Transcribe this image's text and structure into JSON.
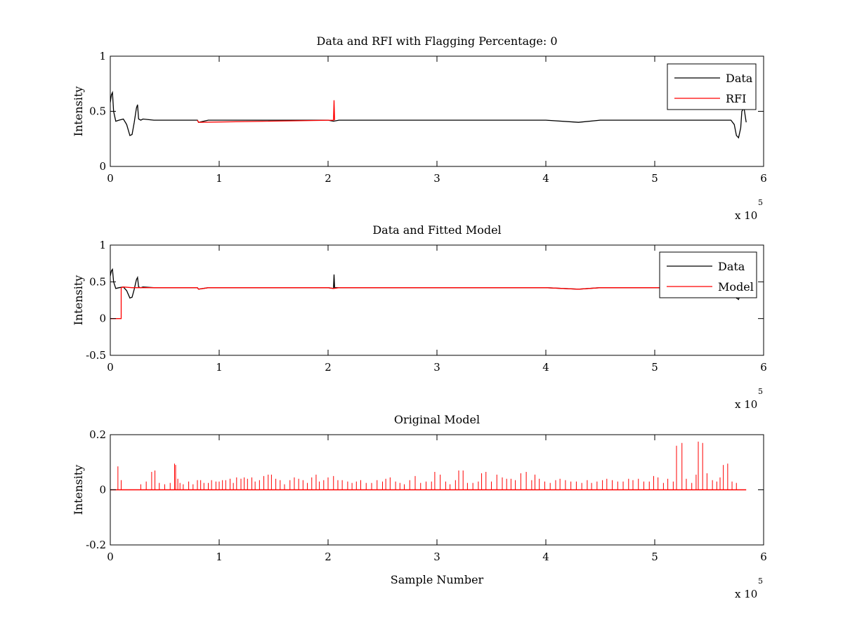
{
  "chart_data": [
    {
      "type": "line",
      "title": "Data and RFI with Flagging Percentage: 0",
      "xlabel": "",
      "ylabel": "Intensity",
      "xlim": [
        0,
        6
      ],
      "ylim": [
        0,
        1
      ],
      "xticks": [
        "0",
        "1",
        "2",
        "3",
        "4",
        "5",
        "6"
      ],
      "yticks": [
        "0",
        "0.5",
        "1"
      ],
      "x_multiplier": {
        "base": "x 10",
        "exponent": "5"
      },
      "legend": {
        "placement": "top-right",
        "entries": [
          "Data",
          "RFI"
        ]
      },
      "grid": false,
      "series": [
        {
          "name": "Data",
          "color": "#000000",
          "x": [
            0,
            0.01,
            0.02,
            0.03,
            0.05,
            0.08,
            0.12,
            0.15,
            0.18,
            0.2,
            0.22,
            0.24,
            0.25,
            0.26,
            0.28,
            0.3,
            0.4,
            0.6,
            0.8,
            0.81,
            0.9,
            0.95,
            1.2,
            1.6,
            2.0,
            2.05,
            2.1,
            2.5,
            3.0,
            3.5,
            4.0,
            4.3,
            4.5,
            5.0,
            5.5,
            5.7,
            5.73,
            5.75,
            5.77,
            5.79,
            5.8,
            5.82,
            5.84
          ],
          "y": [
            0.58,
            0.65,
            0.67,
            0.5,
            0.41,
            0.42,
            0.43,
            0.38,
            0.28,
            0.29,
            0.4,
            0.53,
            0.56,
            0.43,
            0.42,
            0.43,
            0.42,
            0.42,
            0.42,
            0.4,
            0.42,
            0.42,
            0.42,
            0.42,
            0.42,
            0.41,
            0.42,
            0.42,
            0.42,
            0.42,
            0.42,
            0.4,
            0.42,
            0.42,
            0.42,
            0.42,
            0.38,
            0.28,
            0.26,
            0.35,
            0.5,
            0.53,
            0.4
          ]
        },
        {
          "name": "RFI",
          "color": "#ff0000",
          "x": [
            0.8,
            0.81,
            2.05,
            2.055,
            2.06
          ],
          "y": [
            0.42,
            0.4,
            0.42,
            0.6,
            0.42
          ]
        }
      ]
    },
    {
      "type": "line",
      "title": "Data and Fitted Model",
      "xlabel": "",
      "ylabel": "Intensity",
      "xlim": [
        0,
        6
      ],
      "ylim": [
        -0.5,
        1
      ],
      "xticks": [
        "0",
        "1",
        "2",
        "3",
        "4",
        "5",
        "6"
      ],
      "yticks": [
        "-0.5",
        "0",
        "0.5",
        "1"
      ],
      "x_multiplier": {
        "base": "x 10",
        "exponent": "5"
      },
      "legend": {
        "placement": "top-right",
        "entries": [
          "Data",
          "Model"
        ]
      },
      "grid": false,
      "series": [
        {
          "name": "Data",
          "color": "#000000",
          "x": [
            0,
            0.01,
            0.02,
            0.03,
            0.05,
            0.08,
            0.12,
            0.15,
            0.18,
            0.2,
            0.22,
            0.24,
            0.25,
            0.26,
            0.28,
            0.3,
            0.4,
            0.6,
            0.8,
            0.81,
            0.9,
            0.95,
            1.2,
            1.6,
            2.0,
            2.05,
            2.055,
            2.06,
            2.1,
            2.5,
            3.0,
            3.5,
            4.0,
            4.3,
            4.5,
            5.0,
            5.5,
            5.7,
            5.73,
            5.75,
            5.77,
            5.79,
            5.8,
            5.82,
            5.84
          ],
          "y": [
            0.58,
            0.65,
            0.67,
            0.5,
            0.41,
            0.42,
            0.43,
            0.38,
            0.28,
            0.29,
            0.4,
            0.53,
            0.56,
            0.43,
            0.42,
            0.43,
            0.42,
            0.42,
            0.42,
            0.4,
            0.42,
            0.42,
            0.42,
            0.42,
            0.42,
            0.41,
            0.6,
            0.42,
            0.42,
            0.42,
            0.42,
            0.42,
            0.42,
            0.4,
            0.42,
            0.42,
            0.42,
            0.42,
            0.38,
            0.28,
            0.26,
            0.35,
            0.5,
            0.53,
            0.4
          ]
        },
        {
          "name": "Model",
          "color": "#ff0000",
          "x": [
            0,
            0.1,
            0.1,
            0.12,
            0.2,
            0.4,
            0.8,
            0.81,
            0.9,
            1.2,
            2.0,
            2.05,
            2.1,
            3.0,
            4.0,
            4.3,
            4.5,
            5.0,
            5.5,
            5.84
          ],
          "y": [
            0,
            0,
            0.42,
            0.43,
            0.42,
            0.42,
            0.42,
            0.4,
            0.42,
            0.42,
            0.42,
            0.41,
            0.42,
            0.42,
            0.42,
            0.4,
            0.42,
            0.42,
            0.42,
            0.42
          ]
        }
      ]
    },
    {
      "type": "line",
      "title": "Original Model",
      "xlabel": "Sample Number",
      "ylabel": "Intensity",
      "xlim": [
        0,
        6
      ],
      "ylim": [
        -0.2,
        0.2
      ],
      "xticks": [
        "0",
        "1",
        "2",
        "3",
        "4",
        "5",
        "6"
      ],
      "yticks": [
        "-0.2",
        "0",
        "0.2"
      ],
      "x_multiplier": {
        "base": "x 10",
        "exponent": "5"
      },
      "grid": false,
      "series": [
        {
          "color": "#ff0000",
          "baseline": 0,
          "x_end": 5.84,
          "spikes_x": [
            0.07,
            0.1,
            0.28,
            0.33,
            0.38,
            0.41,
            0.45,
            0.5,
            0.55,
            0.59,
            0.6,
            0.62,
            0.64,
            0.67,
            0.72,
            0.76,
            0.8,
            0.83,
            0.86,
            0.9,
            0.93,
            0.97,
            1.0,
            1.03,
            1.06,
            1.1,
            1.13,
            1.16,
            1.2,
            1.23,
            1.26,
            1.3,
            1.33,
            1.37,
            1.41,
            1.45,
            1.48,
            1.52,
            1.56,
            1.6,
            1.65,
            1.69,
            1.73,
            1.77,
            1.81,
            1.85,
            1.89,
            1.92,
            1.96,
            2.0,
            2.05,
            2.09,
            2.13,
            2.18,
            2.22,
            2.26,
            2.3,
            2.35,
            2.4,
            2.45,
            2.5,
            2.53,
            2.57,
            2.62,
            2.66,
            2.7,
            2.75,
            2.8,
            2.85,
            2.9,
            2.95,
            2.98,
            3.03,
            3.08,
            3.12,
            3.17,
            3.2,
            3.24,
            3.28,
            3.33,
            3.38,
            3.41,
            3.45,
            3.5,
            3.55,
            3.6,
            3.64,
            3.68,
            3.72,
            3.77,
            3.82,
            3.87,
            3.9,
            3.94,
            3.99,
            4.04,
            4.09,
            4.13,
            4.18,
            4.23,
            4.28,
            4.33,
            4.38,
            4.42,
            4.47,
            4.52,
            4.56,
            4.61,
            4.66,
            4.71,
            4.76,
            4.8,
            4.85,
            4.9,
            4.95,
            4.99,
            5.03,
            5.08,
            5.12,
            5.17,
            5.2,
            5.25,
            5.29,
            5.34,
            5.38,
            5.4,
            5.44,
            5.48,
            5.53,
            5.57,
            5.6,
            5.63,
            5.67,
            5.71,
            5.75
          ],
          "spikes_y": [
            0.085,
            0.035,
            0.02,
            0.03,
            0.065,
            0.07,
            0.025,
            0.02,
            0.025,
            0.095,
            0.09,
            0.04,
            0.025,
            0.02,
            0.03,
            0.02,
            0.035,
            0.035,
            0.025,
            0.025,
            0.035,
            0.03,
            0.03,
            0.035,
            0.035,
            0.04,
            0.025,
            0.045,
            0.04,
            0.045,
            0.04,
            0.045,
            0.03,
            0.035,
            0.05,
            0.055,
            0.055,
            0.04,
            0.035,
            0.02,
            0.035,
            0.045,
            0.04,
            0.035,
            0.025,
            0.045,
            0.055,
            0.03,
            0.035,
            0.045,
            0.05,
            0.035,
            0.035,
            0.03,
            0.025,
            0.03,
            0.035,
            0.025,
            0.025,
            0.035,
            0.03,
            0.04,
            0.045,
            0.03,
            0.025,
            0.02,
            0.035,
            0.05,
            0.025,
            0.03,
            0.03,
            0.065,
            0.055,
            0.03,
            0.02,
            0.035,
            0.07,
            0.07,
            0.025,
            0.025,
            0.03,
            0.06,
            0.065,
            0.03,
            0.055,
            0.045,
            0.04,
            0.04,
            0.035,
            0.06,
            0.065,
            0.035,
            0.055,
            0.04,
            0.03,
            0.025,
            0.035,
            0.04,
            0.035,
            0.03,
            0.03,
            0.025,
            0.035,
            0.025,
            0.03,
            0.035,
            0.04,
            0.035,
            0.03,
            0.03,
            0.04,
            0.035,
            0.04,
            0.03,
            0.03,
            0.05,
            0.045,
            0.025,
            0.04,
            0.03,
            0.16,
            0.17,
            0.04,
            0.025,
            0.055,
            0.175,
            0.17,
            0.06,
            0.035,
            0.03,
            0.045,
            0.09,
            0.095,
            0.03,
            0.025
          ]
        }
      ]
    }
  ]
}
